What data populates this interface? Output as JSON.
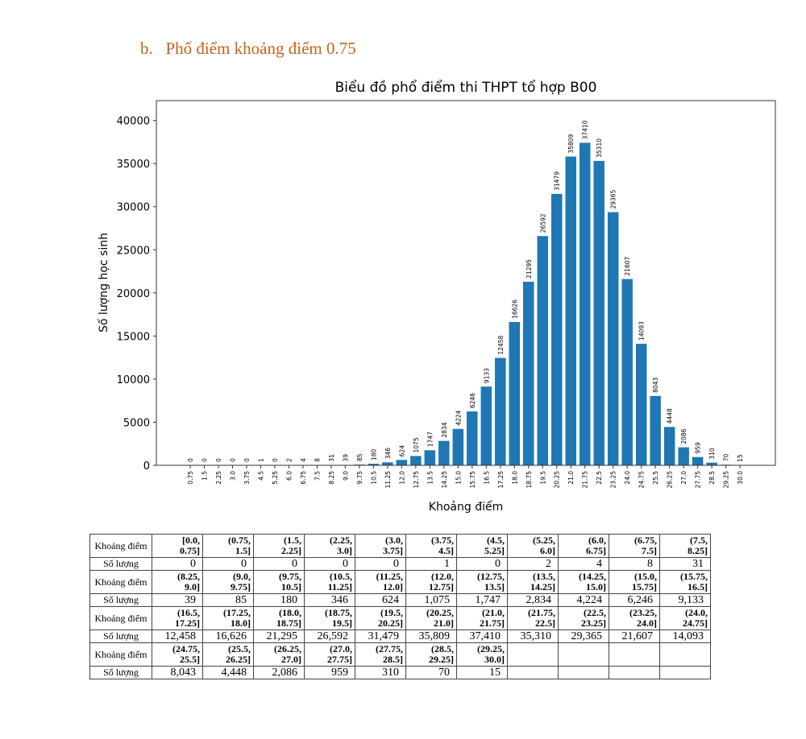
{
  "heading": "b.   Phổ điểm khoảng điểm 0.75",
  "chart_data": {
    "type": "bar",
    "title": "Biểu đồ phổ điểm thi THPT tổ hợp B00",
    "xlabel": "Khoảng điểm",
    "ylabel": "Số lượng học sinh",
    "ylim": [
      0,
      42300
    ],
    "yticks": [
      0,
      5000,
      10000,
      15000,
      20000,
      25000,
      30000,
      35000,
      40000
    ],
    "bar_color": "#1f77b4",
    "grid": false,
    "categories": [
      "0.75",
      "1.5",
      "2.25",
      "3.0",
      "3.75",
      "4.5",
      "5.25",
      "6.0",
      "6.75",
      "7.5",
      "8.25",
      "9.0",
      "9.75",
      "10.5",
      "11.25",
      "12.0",
      "12.75",
      "13.5",
      "14.25",
      "15.0",
      "15.75",
      "16.5",
      "17.25",
      "18.0",
      "18.75",
      "19.5",
      "20.25",
      "21.0",
      "21.75",
      "22.5",
      "23.25",
      "24.0",
      "24.75",
      "25.5",
      "26.25",
      "27.0",
      "27.75",
      "28.5",
      "29.25",
      "30.0"
    ],
    "values": [
      0,
      0,
      0,
      0,
      0,
      1,
      0,
      2,
      4,
      8,
      31,
      39,
      85,
      180,
      346,
      624,
      1075,
      1747,
      2834,
      4224,
      6246,
      9133,
      12458,
      16626,
      21295,
      26592,
      31479,
      35809,
      37410,
      35310,
      29365,
      21607,
      14093,
      8043,
      4448,
      2086,
      959,
      310,
      70,
      15
    ]
  },
  "table": {
    "interval_label": "Khoảng điểm",
    "count_label": "Số lượng",
    "rows": [
      {
        "intervals": [
          [
            "[0.0,",
            "0.75]"
          ],
          [
            "(0.75,",
            "1.5]"
          ],
          [
            "(1.5,",
            "2.25]"
          ],
          [
            "(2.25,",
            "3.0]"
          ],
          [
            "(3.0,",
            "3.75]"
          ],
          [
            "(3.75,",
            "4.5]"
          ],
          [
            "(4.5,",
            "5.25]"
          ],
          [
            "(5.25,",
            "6.0]"
          ],
          [
            "(6.0,",
            "6.75]"
          ],
          [
            "(6.75,",
            "7.5]"
          ],
          [
            "(7.5,",
            "8.25]"
          ]
        ],
        "counts": [
          "0",
          "0",
          "0",
          "0",
          "0",
          "1",
          "0",
          "2",
          "4",
          "8",
          "31"
        ]
      },
      {
        "intervals": [
          [
            "(8.25,",
            "9.0]"
          ],
          [
            "(9.0,",
            "9.75]"
          ],
          [
            "(9.75,",
            "10.5]"
          ],
          [
            "(10.5,",
            "11.25]"
          ],
          [
            "(11.25,",
            "12.0]"
          ],
          [
            "(12.0,",
            "12.75]"
          ],
          [
            "(12.75,",
            "13.5]"
          ],
          [
            "(13.5,",
            "14.25]"
          ],
          [
            "(14.25,",
            "15.0]"
          ],
          [
            "(15.0,",
            "15.75]"
          ],
          [
            "(15.75,",
            "16.5]"
          ]
        ],
        "counts": [
          "39",
          "85",
          "180",
          "346",
          "624",
          "1,075",
          "1,747",
          "2,834",
          "4,224",
          "6,246",
          "9,133"
        ]
      },
      {
        "intervals": [
          [
            "(16.5,",
            "17.25]"
          ],
          [
            "(17.25,",
            "18.0]"
          ],
          [
            "(18.0,",
            "18.75]"
          ],
          [
            "(18.75,",
            "19.5]"
          ],
          [
            "(19.5,",
            "20.25]"
          ],
          [
            "(20.25,",
            "21.0]"
          ],
          [
            "(21.0,",
            "21.75]"
          ],
          [
            "(21.75,",
            "22.5]"
          ],
          [
            "(22.5,",
            "23.25]"
          ],
          [
            "(23.25,",
            "24.0]"
          ],
          [
            "(24.0,",
            "24.75]"
          ]
        ],
        "counts": [
          "12,458",
          "16,626",
          "21,295",
          "26,592",
          "31,479",
          "35,809",
          "37,410",
          "35,310",
          "29,365",
          "21,607",
          "14,093"
        ]
      },
      {
        "intervals": [
          [
            "(24.75,",
            "25.5]"
          ],
          [
            "(25.5,",
            "26.25]"
          ],
          [
            "(26.25,",
            "27.0]"
          ],
          [
            "(27.0,",
            "27.75]"
          ],
          [
            "(27.75,",
            "28.5]"
          ],
          [
            "(28.5,",
            "29.25]"
          ],
          [
            "(29.25,",
            "30.0]"
          ],
          [
            "",
            ""
          ],
          [
            "",
            ""
          ],
          [
            "",
            ""
          ],
          [
            "",
            ""
          ]
        ],
        "counts": [
          "8,043",
          "4,448",
          "2,086",
          "959",
          "310",
          "70",
          "15",
          "",
          "",
          "",
          ""
        ]
      }
    ]
  }
}
